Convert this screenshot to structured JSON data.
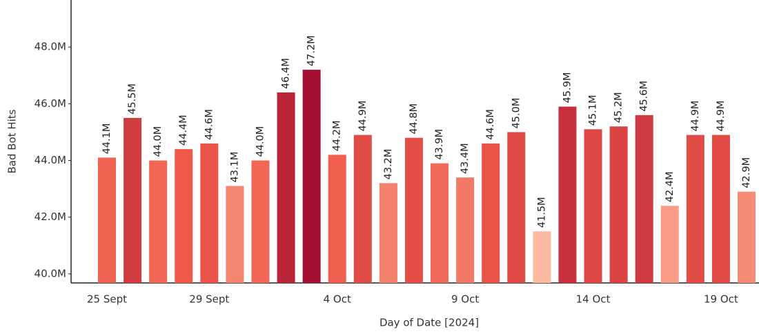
{
  "chart_data": {
    "type": "bar",
    "x_label": "Day of Date [2024]",
    "y_label": "Bad Bot Hits",
    "categories": [
      "25 Sept",
      null,
      null,
      null,
      "29 Sept",
      null,
      null,
      null,
      null,
      "4 Oct",
      null,
      null,
      null,
      null,
      "9 Oct",
      null,
      null,
      null,
      null,
      "14 Oct",
      null,
      null,
      null,
      null,
      "19 Oct",
      null
    ],
    "values": [
      44100000,
      45500000,
      44000000,
      44400000,
      44600000,
      43100000,
      44000000,
      46400000,
      47200000,
      44200000,
      44900000,
      43200000,
      44800000,
      43900000,
      43400000,
      44600000,
      45000000,
      41500000,
      45900000,
      45100000,
      45200000,
      45600000,
      42400000,
      44900000,
      44900000,
      42900000
    ],
    "value_labels": [
      "44.1M",
      "45.5M",
      "44.0M",
      "44.4M",
      "44.6M",
      "43.1M",
      "44.0M",
      "46.4M",
      "47.2M",
      "44.2M",
      "44.9M",
      "43.2M",
      "44.8M",
      "43.9M",
      "43.4M",
      "44.6M",
      "45.0M",
      "41.5M",
      "45.9M",
      "45.1M",
      "45.2M",
      "45.6M",
      "42.4M",
      "44.9M",
      "44.9M",
      "42.9M"
    ],
    "color_scale": [
      "#fcbba1",
      "#ef5a4a",
      "#a50f33"
    ],
    "ylim": [
      39680000,
      49660000
    ],
    "yticks": [
      {
        "value": 40000000,
        "label": "40.0M"
      },
      {
        "value": 42000000,
        "label": "42.0M"
      },
      {
        "value": 44000000,
        "label": "44.0M"
      },
      {
        "value": 46000000,
        "label": "46.0M"
      },
      {
        "value": 48000000,
        "label": "48.0M"
      }
    ],
    "grid": false
  }
}
